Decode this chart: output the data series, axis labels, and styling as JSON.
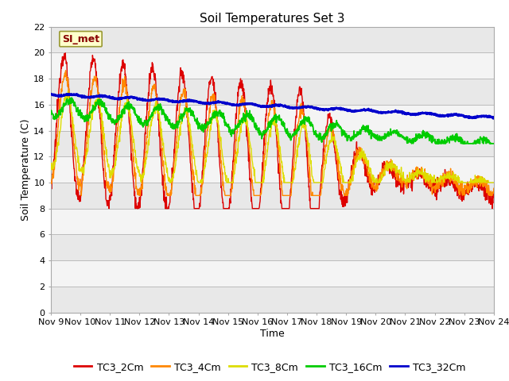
{
  "title": "Soil Temperatures Set 3",
  "xlabel": "Time",
  "ylabel": "Soil Temperature (C)",
  "ylim": [
    0,
    22
  ],
  "x_tick_labels": [
    "Nov 9",
    "Nov 10",
    "Nov 11",
    "Nov 12",
    "Nov 13",
    "Nov 14",
    "Nov 15",
    "Nov 16",
    "Nov 17",
    "Nov 18",
    "Nov 19",
    "Nov 20",
    "Nov 21",
    "Nov 22",
    "Nov 23",
    "Nov 24"
  ],
  "series_colors": {
    "TC3_2Cm": "#dd0000",
    "TC3_4Cm": "#ff8800",
    "TC3_8Cm": "#dddd00",
    "TC3_16Cm": "#00cc00",
    "TC3_32Cm": "#0000cc"
  },
  "series_names": [
    "TC3_2Cm",
    "TC3_4Cm",
    "TC3_8Cm",
    "TC3_16Cm",
    "TC3_32Cm"
  ],
  "band_colors": [
    "#e8e8e8",
    "#f4f4f4"
  ],
  "si_met_label": "SI_met",
  "title_fontsize": 11,
  "axis_label_fontsize": 9,
  "tick_fontsize": 8,
  "legend_fontsize": 9
}
